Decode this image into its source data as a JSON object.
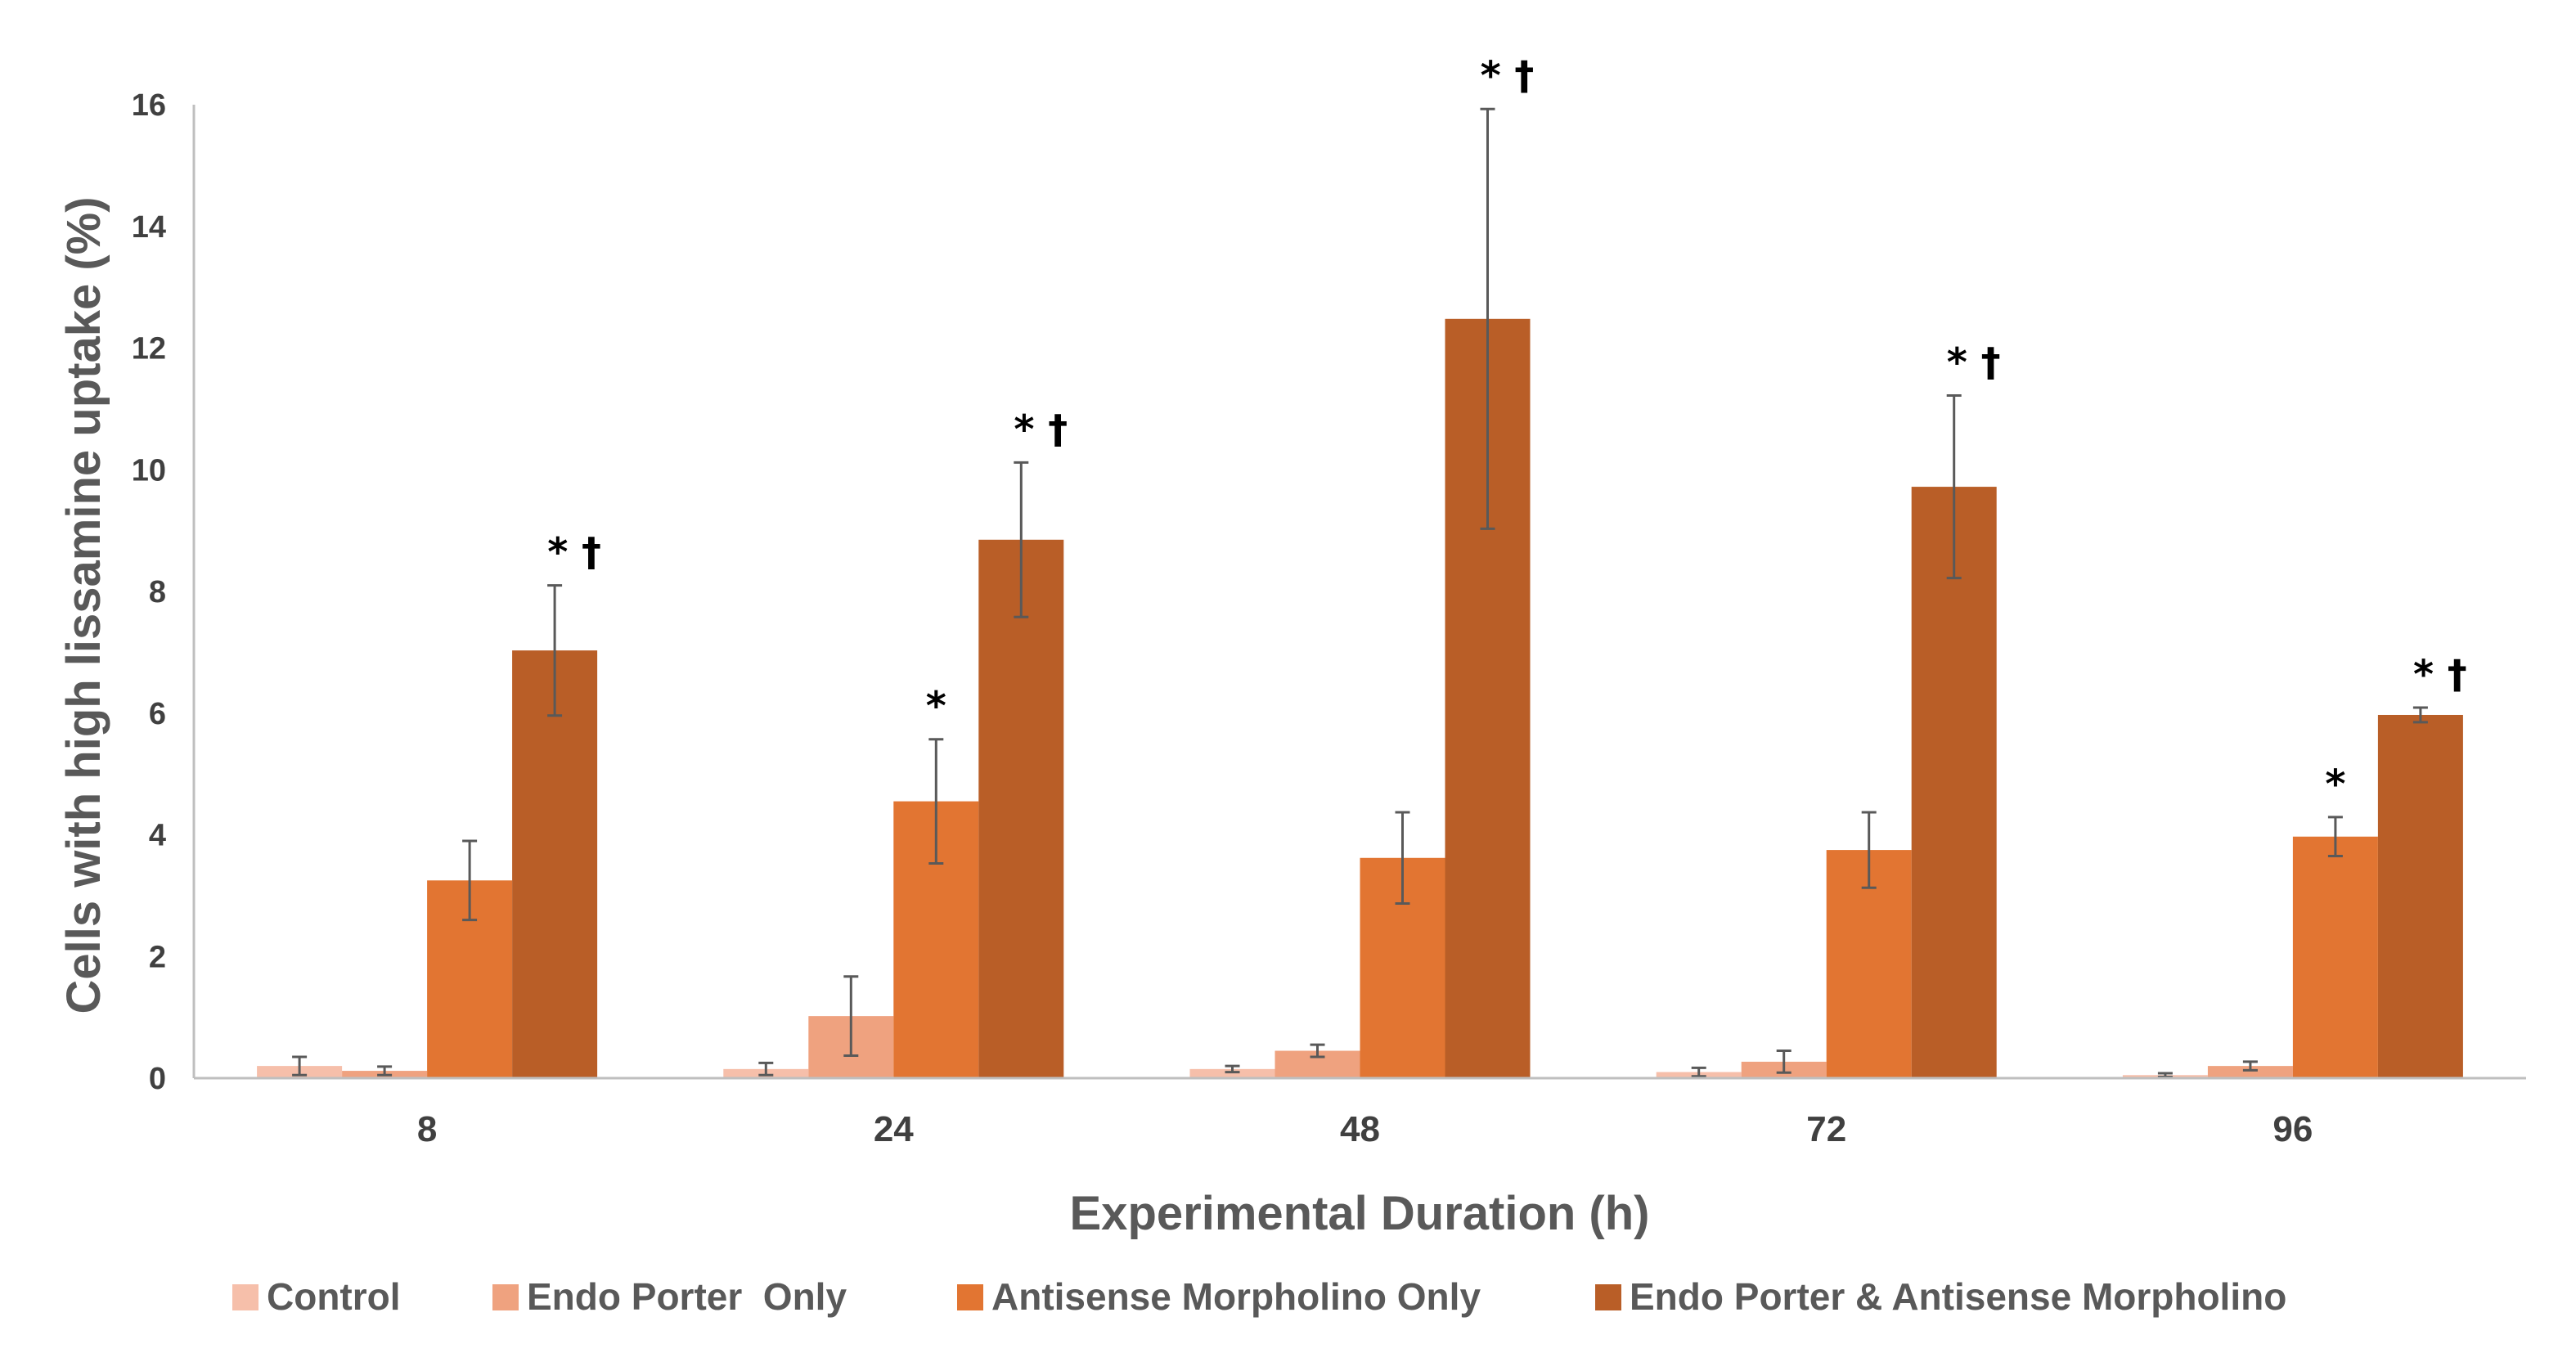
{
  "chart_data": {
    "type": "bar",
    "title": "",
    "xlabel": "Experimental Duration (h)",
    "ylabel": "Cells with high lissamine uptake (%)",
    "ylim": [
      0,
      16
    ],
    "yticks": [
      0,
      2,
      4,
      6,
      8,
      10,
      12,
      14,
      16
    ],
    "grid": false,
    "legend_position": "bottom",
    "categories": [
      "8",
      "24",
      "48",
      "72",
      "96"
    ],
    "series": [
      {
        "name": "Control",
        "color": "#F6BFAA",
        "values": [
          0.2,
          0.15,
          0.15,
          0.1,
          0.05
        ],
        "errors": [
          0.15,
          0.1,
          0.05,
          0.07,
          0.03
        ],
        "annotations": [
          "",
          "",
          "",
          "",
          ""
        ]
      },
      {
        "name": "Endo Porter  Only",
        "color": "#EFA27F",
        "values": [
          0.12,
          1.02,
          0.45,
          0.27,
          0.2
        ],
        "errors": [
          0.07,
          0.65,
          0.1,
          0.18,
          0.07
        ],
        "annotations": [
          "",
          "",
          "",
          "",
          ""
        ]
      },
      {
        "name": "Antisense Morpholino Only",
        "color": "#E27532",
        "values": [
          3.25,
          4.55,
          3.62,
          3.75,
          3.97
        ],
        "errors": [
          0.65,
          1.02,
          0.75,
          0.62,
          0.32
        ],
        "annotations": [
          "",
          "*",
          "",
          "",
          "*"
        ]
      },
      {
        "name": "Endo Porter & Antisense Morpholino",
        "color": "#B95E27",
        "values": [
          7.03,
          8.85,
          12.48,
          9.72,
          5.97
        ],
        "errors": [
          1.07,
          1.27,
          3.45,
          1.5,
          0.12
        ],
        "annotations": [
          "* †",
          "* †",
          "* †",
          "* †",
          "* †"
        ]
      }
    ]
  }
}
